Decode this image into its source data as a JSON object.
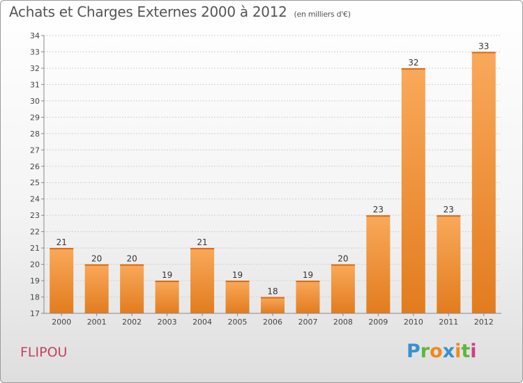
{
  "header": {
    "title": "Achats et Charges Externes 2000 à 2012",
    "unit": "(en milliers d'€)"
  },
  "commune": "FLIPOU",
  "logo": {
    "letters": [
      "P",
      "r",
      "o",
      "x",
      "i",
      "t",
      "i"
    ],
    "colors": [
      "#3a8fd0",
      "#5bb83a",
      "#f08a1c",
      "#3a8fd0",
      "#f08a1c",
      "#5bb83a",
      "#d63a8a"
    ]
  },
  "colors": {
    "bar_light": "#f9a95a",
    "bar_dark": "#e27c1e",
    "bar_top": "#d86a14",
    "label": "#333333"
  },
  "chart_data": {
    "type": "bar",
    "categories": [
      "2000",
      "2001",
      "2002",
      "2003",
      "2004",
      "2005",
      "2006",
      "2007",
      "2008",
      "2009",
      "2010",
      "2011",
      "2012"
    ],
    "values": [
      21,
      20,
      20,
      19,
      21,
      19,
      18,
      19,
      20,
      23,
      32,
      23,
      33
    ],
    "ylim": [
      17,
      34
    ],
    "yticks": [
      17,
      18,
      19,
      20,
      21,
      22,
      23,
      24,
      25,
      26,
      27,
      28,
      29,
      30,
      31,
      32,
      33,
      34
    ],
    "grid": true,
    "title": "Achats et Charges Externes 2000 à 2012",
    "xlabel": "",
    "ylabel": ""
  }
}
